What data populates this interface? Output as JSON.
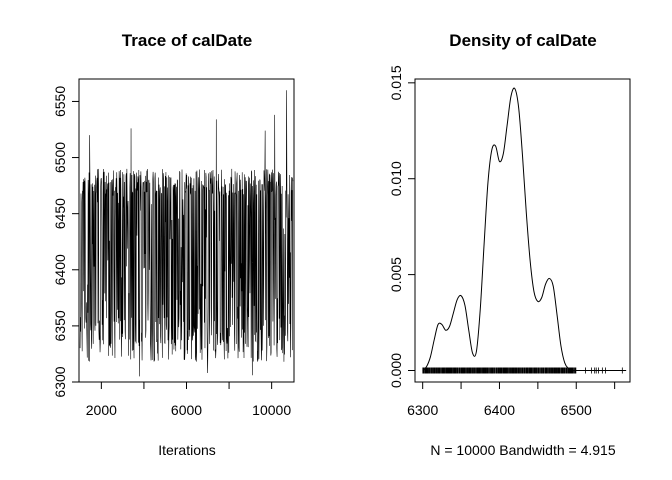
{
  "chart_data": [
    {
      "type": "line",
      "title": "Trace of calDate",
      "xlabel": "Iterations",
      "ylabel": "",
      "xlim": [
        950,
        11050
      ],
      "ylim": [
        6300,
        6570
      ],
      "x_ticks": [
        2000,
        6000,
        10000
      ],
      "y_ticks": [
        6300,
        6350,
        6400,
        6450,
        6500,
        6550
      ],
      "iterations": {
        "start": 1001,
        "end": 11000,
        "count": 10000
      },
      "band": {
        "typical_low": 6318,
        "typical_high": 6490
      },
      "spikes": [
        {
          "x": 1450,
          "y": 6520
        },
        {
          "x": 3400,
          "y": 6526
        },
        {
          "x": 7400,
          "y": 6534
        },
        {
          "x": 9700,
          "y": 6524
        },
        {
          "x": 10150,
          "y": 6538
        },
        {
          "x": 10700,
          "y": 6560
        }
      ],
      "dips": [
        {
          "x": 3800,
          "y": 6305
        },
        {
          "x": 7000,
          "y": 6308
        },
        {
          "x": 9100,
          "y": 6306
        }
      ]
    },
    {
      "type": "area",
      "title": "Density of calDate",
      "xlabel": "N = 10000   Bandwidth = 4.915",
      "ylabel": "",
      "xlim": [
        6290,
        6570
      ],
      "ylim": [
        -0.0006,
        0.0152
      ],
      "x_ticks": [
        6300,
        6400,
        6500
      ],
      "y_ticks": [
        "0.000",
        "0.005",
        "0.010",
        "0.015"
      ],
      "x": [
        6300,
        6305,
        6310,
        6315,
        6320,
        6325,
        6330,
        6335,
        6340,
        6345,
        6350,
        6355,
        6360,
        6365,
        6370,
        6375,
        6380,
        6385,
        6390,
        6395,
        6400,
        6405,
        6410,
        6415,
        6420,
        6425,
        6430,
        6435,
        6440,
        6445,
        6450,
        6455,
        6460,
        6465,
        6470,
        6475,
        6480,
        6485,
        6490,
        6495,
        6500,
        6505,
        6510,
        6520,
        6530,
        6540,
        6550,
        6560,
        6565
      ],
      "y": [
        0.0,
        0.0002,
        0.0007,
        0.0016,
        0.0024,
        0.0024,
        0.0021,
        0.0023,
        0.003,
        0.0037,
        0.0039,
        0.0034,
        0.0021,
        0.0009,
        0.001,
        0.0032,
        0.0066,
        0.0098,
        0.0115,
        0.0117,
        0.0109,
        0.0113,
        0.0128,
        0.0143,
        0.0147,
        0.0137,
        0.0112,
        0.0082,
        0.0057,
        0.0041,
        0.0036,
        0.0038,
        0.0045,
        0.0048,
        0.0044,
        0.0029,
        0.0013,
        0.0004,
        0.0001,
        0.0,
        0.0,
        0.0,
        0.0,
        0.0,
        0.0,
        0.0,
        0.0,
        0.0,
        0.0
      ],
      "rug": {
        "dense_from": 6300,
        "dense_to": 6500,
        "sparse": [
          6512,
          6520,
          6524,
          6526,
          6529,
          6534,
          6538,
          6560
        ]
      }
    }
  ]
}
